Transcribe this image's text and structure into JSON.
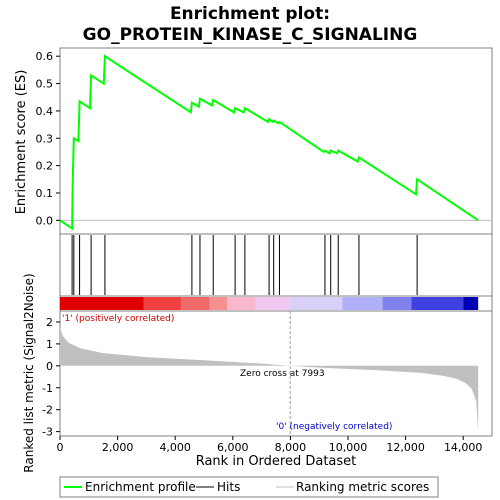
{
  "chart_data": {
    "type": "line",
    "title": [
      "Enrichment plot:",
      "GO_PROTEIN_KINASE_C_SIGNALING"
    ],
    "es_panel": {
      "ylabel": "Enrichment score (ES)",
      "ylim": [
        -0.05,
        0.63
      ],
      "yticks": [
        "0.0",
        "0.1",
        "0.2",
        "0.3",
        "0.4",
        "0.5",
        "0.6"
      ],
      "ytick_values": [
        0.0,
        0.1,
        0.2,
        0.3,
        0.4,
        0.5,
        0.6
      ],
      "series": [
        {
          "name": "Enrichment profile",
          "color": "#00ff00",
          "x": [
            0,
            420,
            440,
            480,
            640,
            680,
            1040,
            1080,
            1520,
            1560,
            4540,
            4580,
            4820,
            4860,
            5280,
            5320,
            6040,
            6080,
            6380,
            6420,
            7220,
            7260,
            7380,
            7420,
            7580,
            7620,
            9160,
            9200,
            9360,
            9400,
            9620,
            9660,
            10340,
            10380,
            12360,
            12400,
            14520
          ],
          "y": [
            0.0,
            -0.03,
            0.14,
            0.3,
            0.29,
            0.435,
            0.41,
            0.53,
            0.5,
            0.6,
            0.395,
            0.43,
            0.415,
            0.445,
            0.42,
            0.44,
            0.395,
            0.41,
            0.395,
            0.41,
            0.36,
            0.37,
            0.36,
            0.365,
            0.355,
            0.36,
            0.25,
            0.255,
            0.245,
            0.255,
            0.245,
            0.255,
            0.215,
            0.23,
            0.095,
            0.15,
            0.0
          ]
        }
      ]
    },
    "hits": {
      "name": "Hits",
      "color": "#000000",
      "positions": [
        420,
        480,
        680,
        1080,
        1560,
        4580,
        4860,
        5320,
        6080,
        6420,
        7260,
        7420,
        7620,
        9200,
        9400,
        9660,
        10380,
        12400
      ]
    },
    "ranking_bar": {
      "colors": [
        "#dd0000",
        "#f04040",
        "#f06868",
        "#f49090",
        "#f8b8cc",
        "#f0c8f0",
        "#d8d0f8",
        "#b0b0f8",
        "#8080f0",
        "#4040e0",
        "#0000b0"
      ],
      "breaks": [
        0,
        2900,
        4200,
        5200,
        5800,
        6800,
        8000,
        9800,
        11200,
        12200,
        14000,
        14520
      ]
    },
    "metric_panel": {
      "ylabel": "Ranked list metric (Signal2Noise)",
      "ylim": [
        -3.2,
        2.5
      ],
      "yticks": [
        "2",
        "1",
        "0",
        "-1",
        "-2",
        "-3"
      ],
      "ytick_values": [
        2,
        1,
        0,
        -1,
        -2,
        -3
      ],
      "color": "#c0c0c0",
      "x": [
        0,
        100,
        300,
        700,
        1500,
        3000,
        5000,
        7000,
        7993,
        9000,
        11000,
        12500,
        13300,
        13800,
        14100,
        14300,
        14450,
        14520
      ],
      "y": [
        1.75,
        1.35,
        1.05,
        0.8,
        0.58,
        0.4,
        0.25,
        0.1,
        0.0,
        -0.08,
        -0.2,
        -0.32,
        -0.45,
        -0.6,
        -0.8,
        -1.05,
        -1.6,
        -3.0
      ],
      "pos_label": "'1' (positively correlated)",
      "neg_label": "'0' (negatively correlated)",
      "zero_cross_label": "Zero cross at 7993",
      "zero_cross": 7993
    },
    "xaxis": {
      "label": "Rank in Ordered Dataset",
      "xlim": [
        0,
        15000
      ],
      "ticks": [
        "0",
        "2,000",
        "4,000",
        "6,000",
        "8,000",
        "10,000",
        "12,000",
        "14,000"
      ],
      "tick_values": [
        0,
        2000,
        4000,
        6000,
        8000,
        10000,
        12000,
        14000
      ]
    },
    "legend": [
      {
        "label": "Enrichment profile",
        "color": "#00ff00"
      },
      {
        "label": "Hits",
        "color": "#000000"
      },
      {
        "label": "Ranking metric scores",
        "color": "#c0c0c0"
      }
    ]
  }
}
